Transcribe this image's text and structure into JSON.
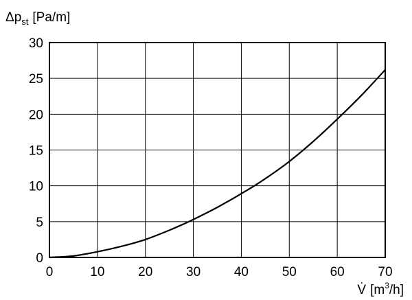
{
  "chart_data": {
    "type": "line",
    "title": "",
    "ylabel": {
      "symbol": "Δp",
      "subscript": "st",
      "unit": "[Pa/m]"
    },
    "xlabel": {
      "symbol": "V̇",
      "unit_prefix": "[m",
      "superscript": "3",
      "unit_suffix": "/h]"
    },
    "xlim": [
      0,
      70
    ],
    "ylim": [
      0,
      30
    ],
    "x_ticks": [
      0,
      10,
      20,
      30,
      40,
      50,
      60,
      70
    ],
    "y_ticks": [
      0,
      5,
      10,
      15,
      20,
      25,
      30
    ],
    "x_tick_labels": [
      "0",
      "10",
      "20",
      "30",
      "40",
      "50",
      "60",
      "70"
    ],
    "y_tick_labels": [
      "0",
      "5",
      "10",
      "15",
      "20",
      "25",
      "30"
    ],
    "grid": true,
    "series": [
      {
        "x": [
          0,
          5,
          10,
          15,
          20,
          25,
          30,
          35,
          40,
          45,
          50,
          55,
          60,
          65,
          70
        ],
        "y": [
          0,
          0.2,
          0.8,
          1.55,
          2.5,
          3.8,
          5.3,
          7.0,
          8.9,
          11.0,
          13.4,
          16.2,
          19.3,
          22.6,
          26.2
        ]
      }
    ]
  }
}
